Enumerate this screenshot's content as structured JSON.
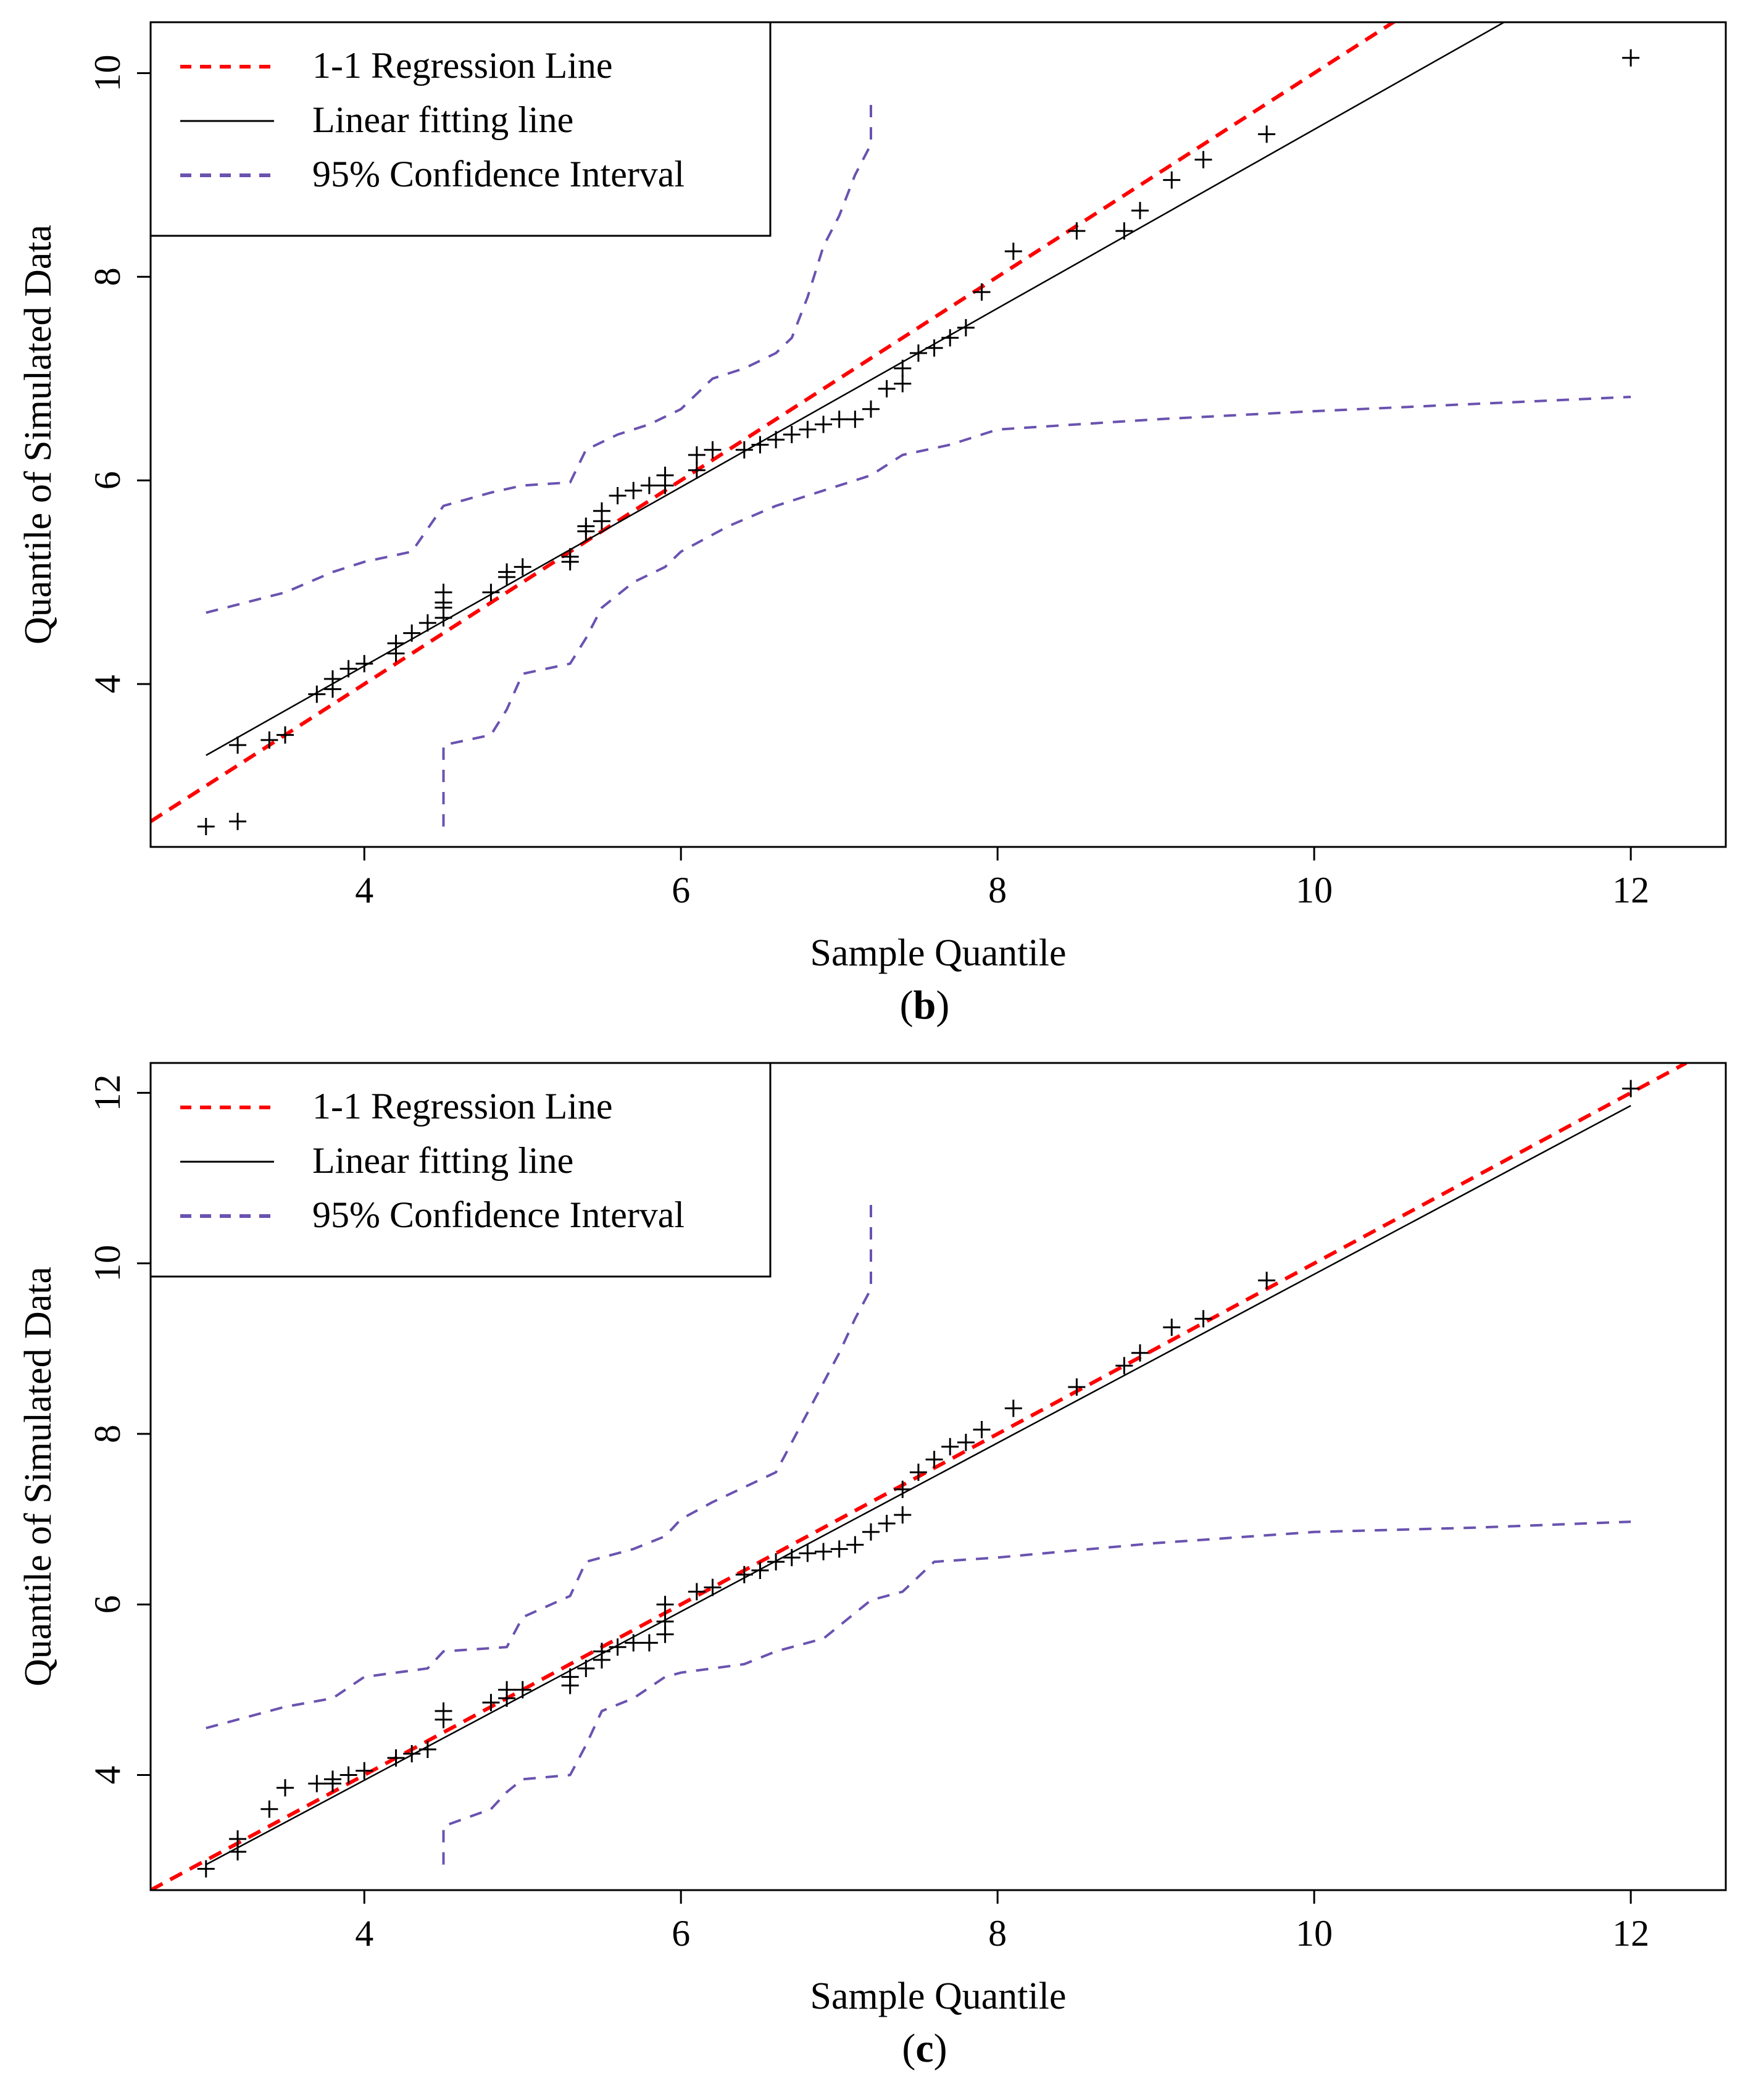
{
  "chart_data": [
    {
      "type": "scatter",
      "panel_label": "b",
      "xlabel": "Sample Quantile",
      "ylabel": "Quantile of Simulated Data",
      "xlim": [
        2.65,
        12.6
      ],
      "ylim": [
        2.4,
        10.5
      ],
      "xticks": [
        4,
        6,
        8,
        10,
        12
      ],
      "yticks": [
        4,
        6,
        8,
        10
      ],
      "grid": false,
      "legend_position": "top-left",
      "colors": {
        "regression": "#ff0000",
        "fit": "#000000",
        "ci": "#6a52b0",
        "points": "#000000"
      },
      "legend": [
        {
          "label": "1-1 Regression Line",
          "style": "dashed",
          "color": "#ff0000"
        },
        {
          "label": "Linear fitting line",
          "style": "solid",
          "color": "#000000"
        },
        {
          "label": "95% Confidence Interval",
          "style": "dashed",
          "color": "#6a52b0"
        }
      ],
      "series": [
        {
          "name": "1-1 Regression Line",
          "kind": "line",
          "x": [
            2.65,
            10.6
          ],
          "y": [
            2.65,
            10.6
          ]
        },
        {
          "name": "Linear fitting line",
          "kind": "line",
          "x": [
            3.0,
            11.2
          ],
          "y": [
            3.3,
            10.5
          ]
        },
        {
          "name": "95% Confidence Interval",
          "kind": "line",
          "segment": "upper",
          "x": [
            3.0,
            3.2,
            3.5,
            3.8,
            4.0,
            4.3,
            4.5,
            4.8,
            5.0,
            5.3,
            5.4,
            5.6,
            5.8,
            6.0,
            6.2,
            6.4,
            6.6,
            6.7,
            6.8,
            6.9,
            7.0,
            7.1,
            7.2,
            7.2
          ],
          "y": [
            4.7,
            4.78,
            4.9,
            5.1,
            5.2,
            5.3,
            5.75,
            5.88,
            5.95,
            5.98,
            6.3,
            6.45,
            6.55,
            6.7,
            7.0,
            7.1,
            7.25,
            7.4,
            7.8,
            8.3,
            8.6,
            9.0,
            9.3,
            9.7
          ]
        },
        {
          "name": "95% Confidence Interval",
          "kind": "line",
          "segment": "lower",
          "x": [
            4.5,
            4.5,
            4.8,
            4.9,
            5.0,
            5.3,
            5.4,
            5.5,
            5.7,
            5.9,
            6.0,
            6.3,
            6.6,
            6.9,
            7.2,
            7.4,
            7.7,
            8.0,
            9.0,
            10.0,
            11.0,
            12.0
          ],
          "y": [
            2.6,
            3.4,
            3.5,
            3.75,
            4.1,
            4.2,
            4.45,
            4.75,
            5.0,
            5.15,
            5.3,
            5.55,
            5.75,
            5.9,
            6.05,
            6.25,
            6.35,
            6.5,
            6.6,
            6.68,
            6.75,
            6.82
          ]
        },
        {
          "name": "Quantile points",
          "kind": "points",
          "x": [
            3.0,
            3.2,
            3.2,
            3.4,
            3.5,
            3.7,
            3.8,
            3.8,
            3.9,
            4.0,
            4.2,
            4.2,
            4.3,
            4.4,
            4.5,
            4.5,
            4.5,
            4.5,
            4.8,
            4.9,
            4.9,
            5.0,
            5.3,
            5.3,
            5.4,
            5.4,
            5.5,
            5.5,
            5.6,
            5.7,
            5.8,
            5.9,
            5.9,
            6.1,
            6.1,
            6.2,
            6.4,
            6.5,
            6.6,
            6.7,
            6.8,
            6.9,
            7.0,
            7.1,
            7.2,
            7.3,
            7.4,
            7.4,
            7.5,
            7.6,
            7.7,
            7.8,
            7.9,
            8.1,
            8.5,
            8.8,
            8.9,
            9.1,
            9.3,
            9.7,
            12.0
          ],
          "y": [
            2.6,
            2.65,
            3.4,
            3.45,
            3.5,
            3.9,
            3.95,
            4.05,
            4.15,
            4.2,
            4.3,
            4.4,
            4.5,
            4.6,
            4.65,
            4.75,
            4.8,
            4.9,
            4.9,
            5.05,
            5.1,
            5.15,
            5.2,
            5.25,
            5.5,
            5.55,
            5.6,
            5.7,
            5.85,
            5.9,
            5.95,
            5.95,
            6.05,
            6.1,
            6.25,
            6.3,
            6.3,
            6.35,
            6.4,
            6.45,
            6.5,
            6.55,
            6.6,
            6.6,
            6.7,
            6.9,
            6.95,
            7.1,
            7.25,
            7.3,
            7.4,
            7.5,
            7.85,
            8.25,
            8.45,
            8.45,
            8.65,
            8.95,
            9.15,
            9.4,
            10.15
          ]
        }
      ]
    },
    {
      "type": "scatter",
      "panel_label": "c",
      "xlabel": "Sample Quantile",
      "ylabel": "Quantile of Simulated Data",
      "xlim": [
        2.65,
        12.6
      ],
      "ylim": [
        2.65,
        12.35
      ],
      "xticks": [
        4,
        6,
        8,
        10,
        12
      ],
      "yticks": [
        4,
        6,
        8,
        10,
        12
      ],
      "grid": false,
      "legend_position": "top-left",
      "colors": {
        "regression": "#ff0000",
        "fit": "#000000",
        "ci": "#6a52b0",
        "points": "#000000"
      },
      "legend": [
        {
          "label": "1-1 Regression Line",
          "style": "dashed",
          "color": "#ff0000"
        },
        {
          "label": "Linear fitting line",
          "style": "solid",
          "color": "#000000"
        },
        {
          "label": "95% Confidence Interval",
          "style": "dashed",
          "color": "#6a52b0"
        }
      ],
      "series": [
        {
          "name": "1-1 Regression Line",
          "kind": "line",
          "x": [
            2.65,
            12.35
          ],
          "y": [
            2.65,
            12.35
          ]
        },
        {
          "name": "Linear fitting line",
          "kind": "line",
          "x": [
            3.0,
            12.0
          ],
          "y": [
            2.95,
            11.85
          ]
        },
        {
          "name": "95% Confidence Interval",
          "kind": "line",
          "segment": "upper",
          "x": [
            3.0,
            3.2,
            3.5,
            3.8,
            4.0,
            4.4,
            4.5,
            4.9,
            5.0,
            5.3,
            5.4,
            5.7,
            5.9,
            6.0,
            6.2,
            6.6,
            6.7,
            6.8,
            6.9,
            7.0,
            7.1,
            7.2,
            7.2
          ],
          "y": [
            4.55,
            4.65,
            4.8,
            4.9,
            5.15,
            5.25,
            5.45,
            5.5,
            5.85,
            6.1,
            6.5,
            6.65,
            6.8,
            7.0,
            7.2,
            7.55,
            7.9,
            8.25,
            8.6,
            8.95,
            9.35,
            9.7,
            10.8
          ]
        },
        {
          "name": "95% Confidence Interval",
          "kind": "line",
          "segment": "lower",
          "x": [
            4.5,
            4.5,
            4.8,
            4.9,
            5.0,
            5.3,
            5.4,
            5.5,
            5.7,
            5.9,
            6.0,
            6.4,
            6.6,
            6.9,
            7.2,
            7.4,
            7.6,
            8.0,
            9.0,
            10.0,
            11.0,
            12.0
          ],
          "y": [
            2.95,
            3.4,
            3.6,
            3.8,
            3.95,
            4.0,
            4.35,
            4.75,
            4.9,
            5.15,
            5.2,
            5.3,
            5.45,
            5.6,
            6.05,
            6.15,
            6.5,
            6.55,
            6.72,
            6.85,
            6.9,
            6.97
          ]
        },
        {
          "name": "Quantile points",
          "kind": "points",
          "x": [
            3.0,
            3.2,
            3.2,
            3.4,
            3.5,
            3.7,
            3.8,
            3.8,
            3.9,
            4.0,
            4.2,
            4.3,
            4.4,
            4.5,
            4.5,
            4.8,
            4.9,
            4.9,
            5.0,
            5.3,
            5.3,
            5.4,
            5.5,
            5.5,
            5.6,
            5.7,
            5.8,
            5.9,
            5.9,
            5.9,
            6.1,
            6.2,
            6.4,
            6.5,
            6.6,
            6.7,
            6.8,
            6.9,
            7.0,
            7.1,
            7.2,
            7.3,
            7.4,
            7.4,
            7.5,
            7.6,
            7.7,
            7.8,
            7.9,
            8.1,
            8.5,
            8.8,
            8.9,
            9.1,
            9.3,
            9.7,
            12.0
          ],
          "y": [
            2.9,
            3.1,
            3.25,
            3.6,
            3.85,
            3.9,
            3.9,
            3.95,
            4.0,
            4.05,
            4.2,
            4.25,
            4.3,
            4.65,
            4.75,
            4.85,
            4.9,
            5.0,
            5.0,
            5.05,
            5.15,
            5.25,
            5.35,
            5.45,
            5.5,
            5.55,
            5.55,
            5.65,
            5.8,
            6.0,
            6.15,
            6.2,
            6.35,
            6.4,
            6.5,
            6.55,
            6.6,
            6.62,
            6.65,
            6.7,
            6.85,
            6.95,
            7.05,
            7.35,
            7.55,
            7.7,
            7.85,
            7.9,
            8.05,
            8.3,
            8.55,
            8.8,
            8.95,
            9.25,
            9.35,
            9.8,
            12.05
          ]
        }
      ]
    }
  ]
}
